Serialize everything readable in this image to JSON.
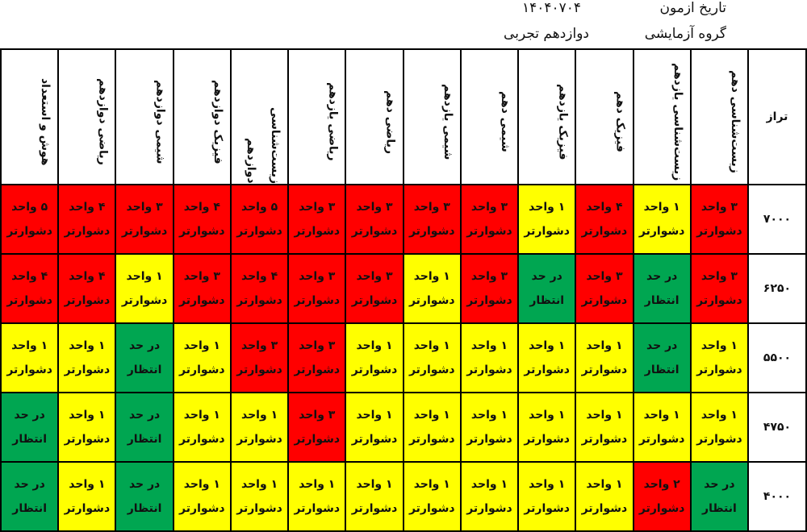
{
  "header": {
    "date_label": "تاریخ ازمون",
    "date": "۱۴۰۴۰۷۰۴",
    "group_label": "گروه آزمایشی",
    "group": "دوازدهم تجربی"
  },
  "table": {
    "corner": "تراز",
    "columns": [
      "زیست‌شناسی دهم",
      "زیست‌شناسی یازدهم",
      "فیزیک دهم",
      "فیزیک یازدهم",
      "شیمی دهم",
      "شیمی یازدهم",
      "ریاضی دهم",
      "ریاضی یازدهم",
      "زیست‌شناسی دوازدهم",
      "فیزیک دوازدهم",
      "شیمی دوازدهم",
      "ریاضی دوازدهم",
      "هوش و استعداد"
    ],
    "rows": [
      {
        "level": "۷۰۰۰",
        "cells": [
          {
            "lines": [
              "۳ واحد",
              "دشوارتر"
            ],
            "color": "#ff0000"
          },
          {
            "lines": [
              "۱ واحد",
              "دشوارتر"
            ],
            "color": "#ffff00"
          },
          {
            "lines": [
              "۴ واحد",
              "دشوارتر"
            ],
            "color": "#ff0000"
          },
          {
            "lines": [
              "۱ واحد",
              "دشوارتر"
            ],
            "color": "#ffff00"
          },
          {
            "lines": [
              "۳ واحد",
              "دشوارتر"
            ],
            "color": "#ff0000"
          },
          {
            "lines": [
              "۳ واحد",
              "دشوارتر"
            ],
            "color": "#ff0000"
          },
          {
            "lines": [
              "۳ واحد",
              "دشوارتر"
            ],
            "color": "#ff0000"
          },
          {
            "lines": [
              "۳ واحد",
              "دشوارتر"
            ],
            "color": "#ff0000"
          },
          {
            "lines": [
              "۵ واحد",
              "دشوارتر"
            ],
            "color": "#ff0000"
          },
          {
            "lines": [
              "۴ واحد",
              "دشوارتر"
            ],
            "color": "#ff0000"
          },
          {
            "lines": [
              "۳ واحد",
              "دشوارتر"
            ],
            "color": "#ff0000"
          },
          {
            "lines": [
              "۴ واحد",
              "دشوارتر"
            ],
            "color": "#ff0000"
          },
          {
            "lines": [
              "۵ واحد",
              "دشوارتر"
            ],
            "color": "#ff0000"
          }
        ]
      },
      {
        "level": "۶۲۵۰",
        "cells": [
          {
            "lines": [
              "۳ واحد",
              "دشوارتر"
            ],
            "color": "#ff0000"
          },
          {
            "lines": [
              "در حد",
              "انتظار"
            ],
            "color": "#00a651"
          },
          {
            "lines": [
              "۳ واحد",
              "دشوارتر"
            ],
            "color": "#ff0000"
          },
          {
            "lines": [
              "در حد",
              "انتظار"
            ],
            "color": "#00a651"
          },
          {
            "lines": [
              "۳ واحد",
              "دشوارتر"
            ],
            "color": "#ff0000"
          },
          {
            "lines": [
              "۱ واحد",
              "دشوارتر"
            ],
            "color": "#ffff00"
          },
          {
            "lines": [
              "۳ واحد",
              "دشوارتر"
            ],
            "color": "#ff0000"
          },
          {
            "lines": [
              "۳ واحد",
              "دشوارتر"
            ],
            "color": "#ff0000"
          },
          {
            "lines": [
              "۴ واحد",
              "دشوارتر"
            ],
            "color": "#ff0000"
          },
          {
            "lines": [
              "۳ واحد",
              "دشوارتر"
            ],
            "color": "#ff0000"
          },
          {
            "lines": [
              "۱ واحد",
              "دشوارتر"
            ],
            "color": "#ffff00"
          },
          {
            "lines": [
              "۴ واحد",
              "دشوارتر"
            ],
            "color": "#ff0000"
          },
          {
            "lines": [
              "۴ واحد",
              "دشوارتر"
            ],
            "color": "#ff0000"
          }
        ]
      },
      {
        "level": "۵۵۰۰",
        "cells": [
          {
            "lines": [
              "۱ واحد",
              "دشوارتر"
            ],
            "color": "#ffff00"
          },
          {
            "lines": [
              "در حد",
              "انتظار"
            ],
            "color": "#00a651"
          },
          {
            "lines": [
              "۱ واحد",
              "دشوارتر"
            ],
            "color": "#ffff00"
          },
          {
            "lines": [
              "۱ واحد",
              "دشوارتر"
            ],
            "color": "#ffff00"
          },
          {
            "lines": [
              "۱ واحد",
              "دشوارتر"
            ],
            "color": "#ffff00"
          },
          {
            "lines": [
              "۱ واحد",
              "دشوارتر"
            ],
            "color": "#ffff00"
          },
          {
            "lines": [
              "۱ واحد",
              "دشوارتر"
            ],
            "color": "#ffff00"
          },
          {
            "lines": [
              "۳ واحد",
              "دشوارتر"
            ],
            "color": "#ff0000"
          },
          {
            "lines": [
              "۳ واحد",
              "دشوارتر"
            ],
            "color": "#ff0000"
          },
          {
            "lines": [
              "۱ واحد",
              "دشوارتر"
            ],
            "color": "#ffff00"
          },
          {
            "lines": [
              "در حد",
              "انتظار"
            ],
            "color": "#00a651"
          },
          {
            "lines": [
              "۱ واحد",
              "دشوارتر"
            ],
            "color": "#ffff00"
          },
          {
            "lines": [
              "۱ واحد",
              "دشوارتر"
            ],
            "color": "#ffff00"
          }
        ]
      },
      {
        "level": "۴۷۵۰",
        "cells": [
          {
            "lines": [
              "۱ واحد",
              "دشوارتر"
            ],
            "color": "#ffff00"
          },
          {
            "lines": [
              "۱ واحد",
              "دشوارتر"
            ],
            "color": "#ffff00"
          },
          {
            "lines": [
              "۱ واحد",
              "دشوارتر"
            ],
            "color": "#ffff00"
          },
          {
            "lines": [
              "۱ واحد",
              "دشوارتر"
            ],
            "color": "#ffff00"
          },
          {
            "lines": [
              "۱ واحد",
              "دشوارتر"
            ],
            "color": "#ffff00"
          },
          {
            "lines": [
              "۱ واحد",
              "دشوارتر"
            ],
            "color": "#ffff00"
          },
          {
            "lines": [
              "۱ واحد",
              "دشوارتر"
            ],
            "color": "#ffff00"
          },
          {
            "lines": [
              "۳ واحد",
              "دشوارتر"
            ],
            "color": "#ff0000"
          },
          {
            "lines": [
              "۱ واحد",
              "دشوارتر"
            ],
            "color": "#ffff00"
          },
          {
            "lines": [
              "۱ واحد",
              "دشوارتر"
            ],
            "color": "#ffff00"
          },
          {
            "lines": [
              "در حد",
              "انتظار"
            ],
            "color": "#00a651"
          },
          {
            "lines": [
              "۱ واحد",
              "دشوارتر"
            ],
            "color": "#ffff00"
          },
          {
            "lines": [
              "در حد",
              "انتظار"
            ],
            "color": "#00a651"
          }
        ]
      },
      {
        "level": "۴۰۰۰",
        "cells": [
          {
            "lines": [
              "در حد",
              "انتظار"
            ],
            "color": "#00a651"
          },
          {
            "lines": [
              "۲ واحد",
              "دشوارتر"
            ],
            "color": "#ff0000"
          },
          {
            "lines": [
              "۱ واحد",
              "دشوارتر"
            ],
            "color": "#ffff00"
          },
          {
            "lines": [
              "۱ واحد",
              "دشوارتر"
            ],
            "color": "#ffff00"
          },
          {
            "lines": [
              "۱ واحد",
              "دشوارتر"
            ],
            "color": "#ffff00"
          },
          {
            "lines": [
              "۱ واحد",
              "دشوارتر"
            ],
            "color": "#ffff00"
          },
          {
            "lines": [
              "۱ واحد",
              "دشوارتر"
            ],
            "color": "#ffff00"
          },
          {
            "lines": [
              "۱ واحد",
              "دشوارتر"
            ],
            "color": "#ffff00"
          },
          {
            "lines": [
              "۱ واحد",
              "دشوارتر"
            ],
            "color": "#ffff00"
          },
          {
            "lines": [
              "۱ واحد",
              "دشوارتر"
            ],
            "color": "#ffff00"
          },
          {
            "lines": [
              "در حد",
              "انتظار"
            ],
            "color": "#00a651"
          },
          {
            "lines": [
              "۱ واحد",
              "دشوارتر"
            ],
            "color": "#ffff00"
          },
          {
            "lines": [
              "در حد",
              "انتظار"
            ],
            "color": "#00a651"
          }
        ]
      }
    ]
  }
}
